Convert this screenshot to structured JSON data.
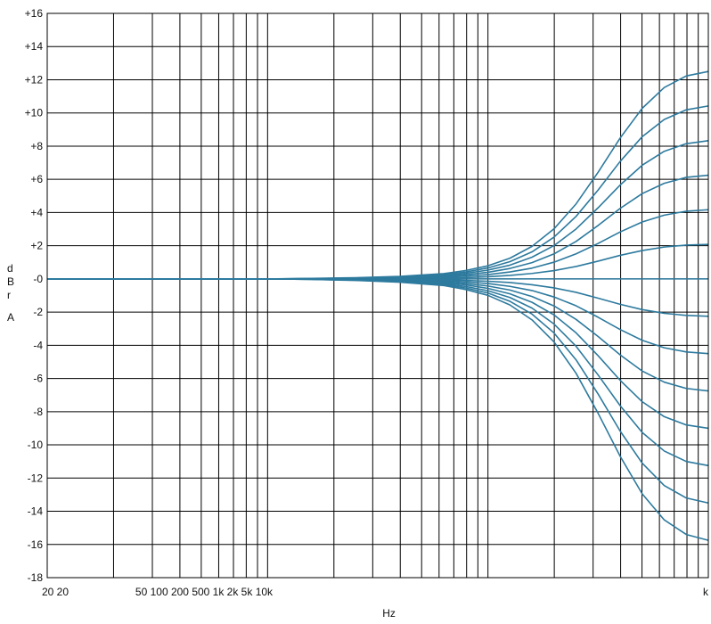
{
  "chart_data": {
    "type": "line",
    "xlabel": "Hz",
    "ylabel_letters": [
      "d",
      "B",
      "r",
      "A"
    ],
    "ylim": [
      -18,
      16
    ],
    "y_ticks": [
      "+16",
      "+14",
      "+12",
      "+10",
      "+8",
      "+6",
      "+4",
      "+2",
      "-0",
      "-2",
      "-4",
      "-6",
      "-8",
      "-10",
      "-12",
      "-14",
      "-16",
      "-18"
    ],
    "y_tick_values": [
      16,
      14,
      12,
      10,
      8,
      6,
      4,
      2,
      0,
      -2,
      -4,
      -6,
      -8,
      -10,
      -12,
      -14,
      -16,
      -18
    ],
    "x_axis": "log",
    "x_decades_shown": 3,
    "x_tick_labels": [
      {
        "text": "20 20",
        "at": 0.0
      },
      {
        "text": "50 100 200 500 1k 2k 5k 10k",
        "at": 0.4
      },
      {
        "text": "k",
        "at": 3.0
      }
    ],
    "grid": true,
    "line_color": "#2d7a9e",
    "x": [
      0.0,
      0.2,
      0.4,
      0.6,
      0.8,
      1.0,
      1.2,
      1.4,
      1.6,
      1.8,
      1.9,
      2.0,
      2.1,
      2.2,
      2.3,
      2.4,
      2.5,
      2.6,
      2.7,
      2.8,
      2.9,
      3.0
    ],
    "series": [
      {
        "values": [
          0,
          0,
          0,
          0,
          0,
          0,
          0.03,
          0.07,
          0.15,
          0.32,
          0.51,
          0.79,
          1.25,
          1.96,
          3.02,
          4.52,
          6.43,
          8.49,
          10.28,
          11.53,
          12.23,
          12.5
        ]
      },
      {
        "values": [
          0,
          0,
          0,
          0,
          0,
          0,
          0.02,
          0.06,
          0.13,
          0.27,
          0.42,
          0.66,
          1.04,
          1.63,
          2.52,
          3.77,
          5.36,
          7.08,
          8.57,
          9.61,
          10.19,
          10.42
        ]
      },
      {
        "values": [
          0,
          0,
          0,
          0,
          0,
          0,
          0.02,
          0.05,
          0.1,
          0.21,
          0.34,
          0.53,
          0.83,
          1.31,
          2.01,
          3.01,
          4.29,
          5.66,
          6.85,
          7.69,
          8.15,
          8.33
        ]
      },
      {
        "values": [
          0,
          0,
          0,
          0,
          0,
          0,
          0.01,
          0.04,
          0.08,
          0.16,
          0.25,
          0.4,
          0.63,
          0.98,
          1.51,
          2.26,
          3.22,
          4.25,
          5.14,
          5.76,
          6.12,
          6.25
        ]
      },
      {
        "values": [
          0,
          0,
          0,
          0,
          0,
          0,
          0.01,
          0.03,
          0.05,
          0.11,
          0.17,
          0.26,
          0.42,
          0.65,
          1.01,
          1.51,
          2.14,
          2.83,
          3.43,
          3.84,
          4.08,
          4.17
        ]
      },
      {
        "values": [
          0,
          0,
          0,
          0,
          0,
          0,
          0,
          0.01,
          0.03,
          0.05,
          0.08,
          0.13,
          0.21,
          0.33,
          0.5,
          0.75,
          1.07,
          1.42,
          1.71,
          1.92,
          2.04,
          2.08
        ]
      },
      {
        "values": [
          0,
          0,
          0,
          0,
          0,
          0,
          0,
          0,
          0,
          0,
          0,
          0,
          0,
          0,
          0,
          0,
          0,
          0,
          0,
          0,
          0,
          0
        ]
      },
      {
        "values": [
          0,
          0,
          0,
          0,
          0,
          0,
          0,
          -0.01,
          -0.02,
          -0.05,
          -0.09,
          -0.14,
          -0.22,
          -0.35,
          -0.54,
          -0.81,
          -1.16,
          -1.53,
          -1.85,
          -2.07,
          -2.2,
          -2.25
        ]
      },
      {
        "values": [
          0,
          0,
          0,
          0,
          0,
          0,
          -0.01,
          -0.03,
          -0.05,
          -0.11,
          -0.18,
          -0.28,
          -0.45,
          -0.7,
          -1.09,
          -1.62,
          -2.31,
          -3.05,
          -3.7,
          -4.15,
          -4.4,
          -4.5
        ]
      },
      {
        "values": [
          0,
          0,
          0,
          0,
          0,
          0,
          -0.01,
          -0.04,
          -0.08,
          -0.17,
          -0.27,
          -0.43,
          -0.67,
          -1.06,
          -1.63,
          -2.44,
          -3.47,
          -4.58,
          -5.55,
          -6.22,
          -6.6,
          -6.75
        ]
      },
      {
        "values": [
          0,
          0,
          0,
          0,
          0,
          0,
          -0.02,
          -0.05,
          -0.11,
          -0.23,
          -0.36,
          -0.57,
          -0.9,
          -1.41,
          -2.17,
          -3.25,
          -4.63,
          -6.11,
          -7.4,
          -8.3,
          -8.8,
          -9.0
        ]
      },
      {
        "values": [
          0,
          0,
          0,
          0,
          0,
          0,
          -0.02,
          -0.06,
          -0.14,
          -0.28,
          -0.46,
          -0.71,
          -1.12,
          -1.76,
          -2.72,
          -4.06,
          -5.79,
          -7.64,
          -9.25,
          -10.37,
          -11.0,
          -11.25
        ]
      },
      {
        "values": [
          0,
          0,
          0,
          0,
          0,
          0,
          -0.03,
          -0.08,
          -0.17,
          -0.34,
          -0.55,
          -0.85,
          -1.35,
          -2.12,
          -3.26,
          -4.88,
          -6.94,
          -9.17,
          -11.1,
          -12.45,
          -13.2,
          -13.5
        ]
      },
      {
        "values": [
          0,
          0,
          0,
          0,
          0,
          0,
          -0.03,
          -0.09,
          -0.2,
          -0.4,
          -0.64,
          -0.99,
          -1.57,
          -2.47,
          -3.8,
          -5.69,
          -8.1,
          -10.69,
          -12.95,
          -14.52,
          -15.4,
          -15.75
        ]
      }
    ]
  }
}
